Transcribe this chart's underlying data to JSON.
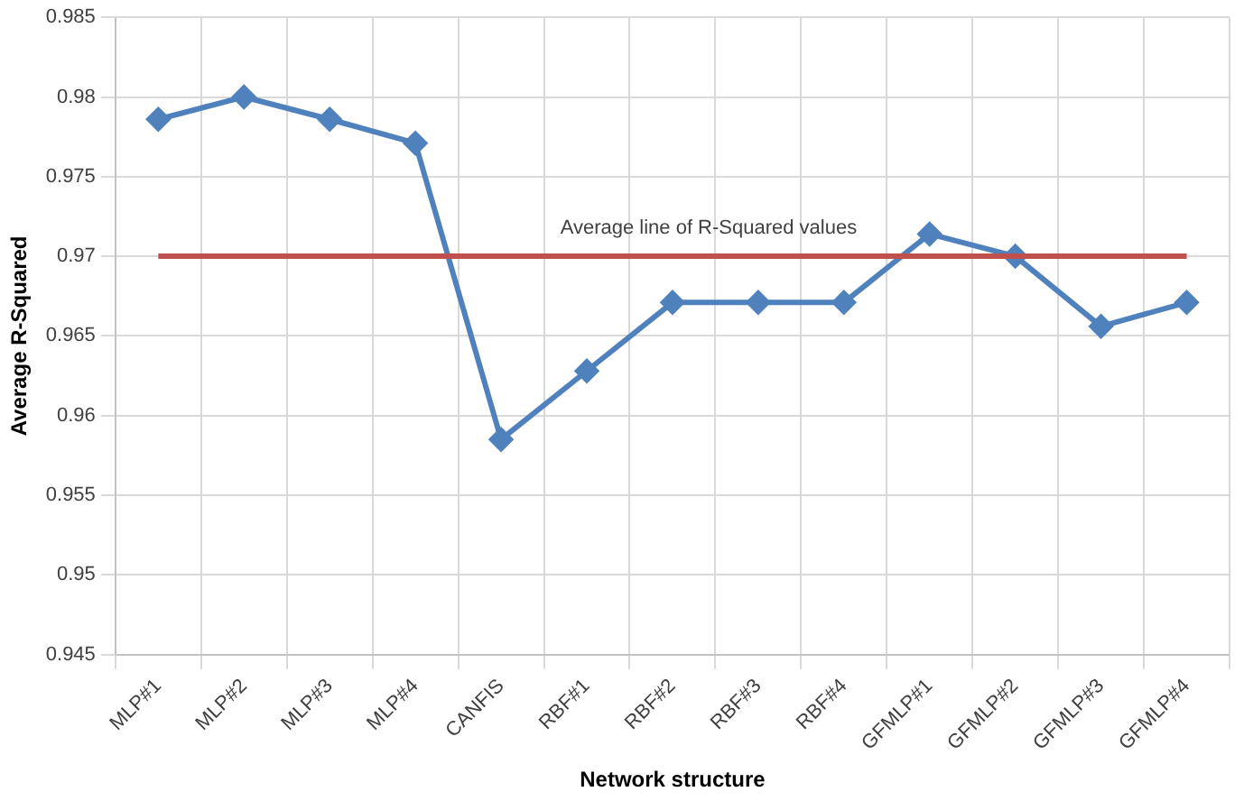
{
  "chart_data": {
    "type": "line",
    "xlabel": "Network structure",
    "ylabel": "Average R-Squared",
    "categories": [
      "MLP#1",
      "MLP#2",
      "MLP#3",
      "MLP#4",
      "CANFIS",
      "RBF#1",
      "RBF#2",
      "RBF#3",
      "RBF#4",
      "GFMLP#1",
      "GFMLP#2",
      "GFMLP#3",
      "GFMLP#4"
    ],
    "series": [
      {
        "color": "#4f81bd",
        "values": [
          0.9786,
          0.98,
          0.9786,
          0.9771,
          0.9585,
          0.9628,
          0.9671,
          0.9671,
          0.9671,
          0.9714,
          0.97,
          0.9656,
          0.9671
        ]
      }
    ],
    "ylim": [
      0.945,
      0.985
    ],
    "yticks": [
      0.945,
      0.95,
      0.955,
      0.96,
      0.965,
      0.97,
      0.975,
      0.98,
      0.985
    ],
    "ref_lines": [
      {
        "axis": "y",
        "value": 0.97,
        "label": "Average line of R-Squared values",
        "color": "#c0504d"
      }
    ],
    "grid": true,
    "legend": false,
    "marker": "diamond",
    "line_style": "solid"
  }
}
